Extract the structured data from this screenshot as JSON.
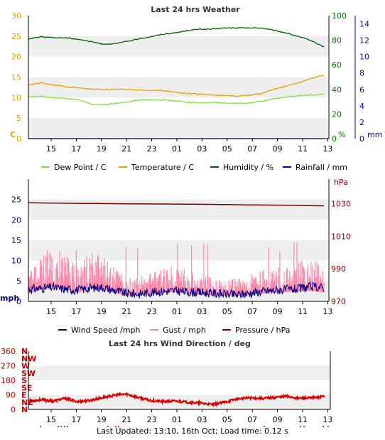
{
  "chart_data": [
    {
      "type": "line",
      "title": "Last 24 hrs Weather",
      "x_ticks": [
        "15",
        "17",
        "19",
        "21",
        "23",
        "01",
        "03",
        "05",
        "07",
        "09",
        "11",
        "13"
      ],
      "axes": {
        "temp": {
          "unit_label": "C",
          "color": "#e8a000",
          "ticks": [
            "0",
            "5",
            "10",
            "15",
            "20",
            "25",
            "30"
          ],
          "range": [
            0,
            30
          ]
        },
        "humidity": {
          "unit_label": "%",
          "color": "#008000",
          "ticks": [
            "0",
            "20",
            "40",
            "60",
            "80",
            "100"
          ],
          "range": [
            0,
            100
          ]
        },
        "rain": {
          "unit_label": "mm",
          "color": "#0000c0",
          "ticks": [
            "0",
            "2",
            "4",
            "6",
            "8",
            "10",
            "12",
            "14"
          ],
          "range": [
            0,
            15
          ]
        }
      },
      "series": [
        {
          "name": "Dew Point / C",
          "color": "#80e040",
          "axis": "temp",
          "hours": [
            0,
            1,
            2,
            3,
            4,
            5,
            6,
            7,
            8,
            9,
            10,
            11,
            12,
            13,
            14,
            15,
            16,
            17,
            18,
            19,
            20,
            21,
            22,
            23,
            24
          ],
          "values": [
            10.2,
            10.3,
            10.0,
            9.8,
            9.5,
            8.5,
            8.2,
            8.6,
            8.9,
            9.4,
            9.5,
            9.4,
            9.2,
            8.9,
            8.7,
            8.8,
            8.7,
            8.6,
            8.7,
            9.1,
            9.7,
            10.2,
            10.4,
            10.7,
            10.8
          ]
        },
        {
          "name": "Temperature / C",
          "color": "#e8a000",
          "axis": "temp",
          "hours": [
            0,
            1,
            2,
            3,
            4,
            5,
            6,
            7,
            8,
            9,
            10,
            11,
            12,
            13,
            14,
            15,
            16,
            17,
            18,
            19,
            20,
            21,
            22,
            23,
            24
          ],
          "values": [
            13.0,
            13.6,
            13.1,
            12.7,
            12.4,
            12.1,
            12.0,
            12.0,
            12.0,
            11.9,
            11.8,
            11.7,
            11.3,
            11.0,
            10.9,
            10.6,
            10.5,
            10.4,
            10.6,
            11.0,
            12.0,
            12.8,
            13.6,
            14.6,
            15.4
          ]
        },
        {
          "name": "Humidity / %",
          "color": "#006000",
          "axis": "humidity",
          "hours": [
            0,
            1,
            2,
            3,
            4,
            5,
            6,
            7,
            8,
            9,
            10,
            11,
            12,
            13,
            14,
            15,
            16,
            17,
            18,
            19,
            20,
            21,
            22,
            23,
            24
          ],
          "values": [
            81,
            83,
            82,
            82,
            81,
            79,
            77,
            77,
            79,
            81,
            83,
            85,
            86,
            88,
            89,
            89,
            90,
            90,
            90,
            90,
            88,
            86,
            83,
            80,
            75
          ]
        },
        {
          "name": "Rainfall / mm",
          "color": "#0000c0",
          "axis": "rain",
          "hours": [
            0,
            24
          ],
          "values": [
            0,
            0
          ]
        }
      ]
    },
    {
      "type": "line",
      "x_ticks": [
        "15",
        "17",
        "19",
        "21",
        "23",
        "01",
        "03",
        "05",
        "07",
        "09",
        "11",
        "13"
      ],
      "axes": {
        "wind": {
          "unit_label": "mph",
          "color": "#000080",
          "ticks": [
            "0",
            "5",
            "10",
            "15",
            "20",
            "25"
          ],
          "range": [
            0,
            30
          ]
        },
        "pressure": {
          "unit_label": "hPa",
          "color": "#800000",
          "ticks": [
            "970",
            "990",
            "1010",
            "1030"
          ],
          "range": [
            970,
            1045
          ]
        }
      },
      "series": [
        {
          "name": "Wind Speed /mph",
          "color": "#000080",
          "axis": "wind",
          "hours": [
            0,
            1,
            2,
            3,
            4,
            5,
            6,
            7,
            8,
            9,
            10,
            11,
            12,
            13,
            14,
            15,
            16,
            17,
            18,
            19,
            20,
            21,
            22,
            23,
            24
          ],
          "values": [
            3.0,
            3.2,
            3.4,
            3.0,
            2.8,
            3.2,
            3.5,
            2.7,
            2.0,
            1.8,
            2.2,
            2.5,
            2.6,
            2.3,
            2.2,
            2.0,
            1.8,
            1.6,
            2.0,
            2.4,
            2.7,
            2.9,
            3.0,
            3.6,
            3.4
          ]
        },
        {
          "name": "Gust / mph",
          "color": "#ff88aa",
          "axis": "wind",
          "hours": [
            0,
            1,
            2,
            3,
            4,
            5,
            6,
            7,
            8,
            9,
            10,
            11,
            12,
            13,
            14,
            15,
            16,
            17,
            18,
            19,
            20,
            21,
            22,
            23,
            24
          ],
          "values": [
            5.5,
            8.0,
            10.0,
            8.5,
            6.0,
            9.0,
            8.0,
            6.0,
            4.0,
            4.5,
            5.0,
            6.0,
            6.5,
            5.5,
            4.5,
            4.5,
            4.0,
            4.0,
            4.5,
            5.5,
            6.0,
            6.5,
            7.0,
            7.5,
            6.5
          ],
          "peak": 15
        },
        {
          "name": "Pressure / hPa",
          "color": "#800000",
          "axis": "pressure",
          "hours": [
            0,
            3,
            6,
            9,
            12,
            15,
            18,
            21,
            24
          ],
          "values": [
            1030.5,
            1030.2,
            1030.0,
            1029.8,
            1029.7,
            1029.5,
            1029.2,
            1029.0,
            1028.6
          ]
        }
      ]
    },
    {
      "type": "scatter",
      "title": "Last 24 hrs Wind Direction / deg",
      "x_ticks": [
        "15",
        "17",
        "19",
        "21",
        "23",
        "01",
        "03",
        "05",
        "07",
        "09",
        "11",
        "13"
      ],
      "y_ticks": [
        "0",
        "90",
        "180",
        "270",
        "360"
      ],
      "y_compass": [
        "N",
        "NE",
        "E",
        "SE",
        "S",
        "SW",
        "W",
        "NW",
        "N"
      ],
      "range": [
        0,
        360
      ],
      "series": [
        {
          "name": "Wind Direction / deg",
          "color": "#dd0000",
          "hours": [
            0,
            1,
            2,
            3,
            4,
            5,
            6,
            7,
            8,
            9,
            10,
            11,
            12,
            13,
            14,
            15,
            16,
            17,
            18,
            19,
            20,
            21,
            22,
            23,
            24
          ],
          "values": [
            50,
            60,
            52,
            68,
            48,
            55,
            72,
            88,
            95,
            72,
            55,
            48,
            52,
            45,
            40,
            30,
            45,
            65,
            72,
            68,
            74,
            82,
            70,
            70,
            80
          ]
        }
      ]
    }
  ],
  "footer": "Last Updated: 13:10, 16th Oct; Load time: 0.12 s"
}
